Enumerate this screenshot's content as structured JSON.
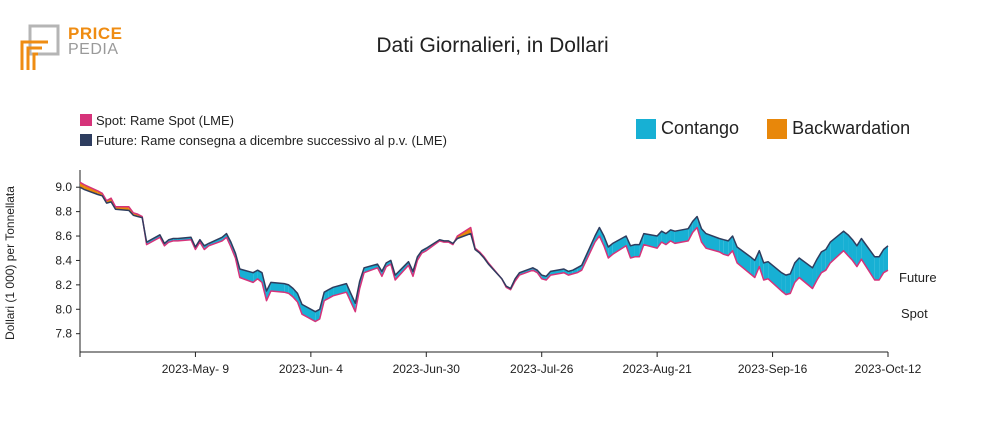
{
  "logo": {
    "top": "PRICE",
    "bottom": "PEDIA"
  },
  "colors": {
    "contango": "#17b0d4",
    "backwardation": "#e8870a",
    "spot": "#d6337a",
    "future": "#2e3d5f"
  },
  "chart_data": {
    "type": "area",
    "title": "Dati Giornalieri, in Dollari",
    "ylabel": "Dollari (1 000) per Tonnellata",
    "xlabel": "",
    "ylim": [
      7.65,
      9.1
    ],
    "yticks": [
      7.8,
      8.0,
      8.2,
      8.4,
      8.6,
      8.8,
      9.0
    ],
    "x_start": "2023-04-13",
    "x_end": "2023-10-12",
    "xticks": [
      {
        "date": "2023-05-09",
        "label": "2023-May- 9"
      },
      {
        "date": "2023-06-04",
        "label": "2023-Jun- 4"
      },
      {
        "date": "2023-06-30",
        "label": "2023-Jun-30"
      },
      {
        "date": "2023-07-26",
        "label": "2023-Jul-26"
      },
      {
        "date": "2023-08-21",
        "label": "2023-Aug-21"
      },
      {
        "date": "2023-09-16",
        "label": "2023-Sep-16"
      },
      {
        "date": "2023-10-12",
        "label": "2023-Oct-12"
      }
    ],
    "legend": [
      {
        "label": "Spot: Rame Spot (LME)"
      },
      {
        "label": "Future: Rame consegna a dicembre successivo al p.v. (LME)"
      }
    ],
    "fill_legend": [
      {
        "label": "Contango"
      },
      {
        "label": "Backwardation"
      }
    ],
    "end_labels": {
      "future": "Future",
      "spot": "Spot"
    },
    "series": [
      {
        "name": "Spot",
        "points": [
          [
            "2023-04-13",
            9.04
          ],
          [
            "2023-04-14",
            9.02
          ],
          [
            "2023-04-17",
            8.97
          ],
          [
            "2023-04-18",
            8.95
          ],
          [
            "2023-04-19",
            8.89
          ],
          [
            "2023-04-20",
            8.91
          ],
          [
            "2023-04-21",
            8.84
          ],
          [
            "2023-04-24",
            8.84
          ],
          [
            "2023-04-25",
            8.79
          ],
          [
            "2023-04-26",
            8.78
          ],
          [
            "2023-04-27",
            8.76
          ],
          [
            "2023-04-28",
            8.53
          ],
          [
            "2023-05-01",
            8.59
          ],
          [
            "2023-05-02",
            8.52
          ],
          [
            "2023-05-03",
            8.55
          ],
          [
            "2023-05-04",
            8.56
          ],
          [
            "2023-05-05",
            8.56
          ],
          [
            "2023-05-08",
            8.57
          ],
          [
            "2023-05-09",
            8.49
          ],
          [
            "2023-05-10",
            8.55
          ],
          [
            "2023-05-11",
            8.49
          ],
          [
            "2023-05-12",
            8.52
          ],
          [
            "2023-05-15",
            8.56
          ],
          [
            "2023-05-16",
            8.59
          ],
          [
            "2023-05-17",
            8.51
          ],
          [
            "2023-05-18",
            8.42
          ],
          [
            "2023-05-19",
            8.26
          ],
          [
            "2023-05-22",
            8.22
          ],
          [
            "2023-05-23",
            8.25
          ],
          [
            "2023-05-24",
            8.22
          ],
          [
            "2023-05-25",
            8.07
          ],
          [
            "2023-05-26",
            8.15
          ],
          [
            "2023-05-29",
            8.14
          ],
          [
            "2023-05-30",
            8.13
          ],
          [
            "2023-05-31",
            8.1
          ],
          [
            "2023-06-01",
            8.06
          ],
          [
            "2023-06-02",
            7.96
          ],
          [
            "2023-06-05",
            7.9
          ],
          [
            "2023-06-06",
            7.92
          ],
          [
            "2023-06-07",
            8.07
          ],
          [
            "2023-06-08",
            8.09
          ],
          [
            "2023-06-09",
            8.11
          ],
          [
            "2023-06-12",
            8.14
          ],
          [
            "2023-06-13",
            8.06
          ],
          [
            "2023-06-14",
            7.98
          ],
          [
            "2023-06-15",
            8.17
          ],
          [
            "2023-06-16",
            8.3
          ],
          [
            "2023-06-19",
            8.34
          ],
          [
            "2023-06-20",
            8.27
          ],
          [
            "2023-06-21",
            8.35
          ],
          [
            "2023-06-22",
            8.37
          ],
          [
            "2023-06-23",
            8.24
          ],
          [
            "2023-06-26",
            8.36
          ],
          [
            "2023-06-27",
            8.27
          ],
          [
            "2023-06-28",
            8.4
          ],
          [
            "2023-06-29",
            8.46
          ],
          [
            "2023-06-30",
            8.48
          ],
          [
            "2023-07-03",
            8.56
          ],
          [
            "2023-07-04",
            8.55
          ],
          [
            "2023-07-05",
            8.55
          ],
          [
            "2023-07-06",
            8.53
          ],
          [
            "2023-07-07",
            8.6
          ],
          [
            "2023-07-10",
            8.67
          ],
          [
            "2023-07-11",
            8.5
          ],
          [
            "2023-07-12",
            8.47
          ],
          [
            "2023-07-13",
            8.43
          ],
          [
            "2023-07-14",
            8.38
          ],
          [
            "2023-07-17",
            8.25
          ],
          [
            "2023-07-18",
            8.18
          ],
          [
            "2023-07-19",
            8.16
          ],
          [
            "2023-07-20",
            8.23
          ],
          [
            "2023-07-21",
            8.28
          ],
          [
            "2023-07-24",
            8.32
          ],
          [
            "2023-07-25",
            8.3
          ],
          [
            "2023-07-26",
            8.25
          ],
          [
            "2023-07-27",
            8.24
          ],
          [
            "2023-07-28",
            8.28
          ],
          [
            "2023-07-31",
            8.3
          ],
          [
            "2023-08-01",
            8.28
          ],
          [
            "2023-08-02",
            8.29
          ],
          [
            "2023-08-03",
            8.3
          ],
          [
            "2023-08-04",
            8.32
          ],
          [
            "2023-08-07",
            8.55
          ],
          [
            "2023-08-08",
            8.6
          ],
          [
            "2023-08-09",
            8.52
          ],
          [
            "2023-08-10",
            8.42
          ],
          [
            "2023-08-11",
            8.45
          ],
          [
            "2023-08-14",
            8.52
          ],
          [
            "2023-08-15",
            8.42
          ],
          [
            "2023-08-16",
            8.43
          ],
          [
            "2023-08-17",
            8.43
          ],
          [
            "2023-08-18",
            8.53
          ],
          [
            "2023-08-21",
            8.5
          ],
          [
            "2023-08-22",
            8.55
          ],
          [
            "2023-08-23",
            8.53
          ],
          [
            "2023-08-24",
            8.56
          ],
          [
            "2023-08-25",
            8.54
          ],
          [
            "2023-08-28",
            8.56
          ],
          [
            "2023-08-29",
            8.63
          ],
          [
            "2023-08-30",
            8.67
          ],
          [
            "2023-08-31",
            8.55
          ],
          [
            "2023-09-01",
            8.5
          ],
          [
            "2023-09-04",
            8.47
          ],
          [
            "2023-09-05",
            8.45
          ],
          [
            "2023-09-06",
            8.44
          ],
          [
            "2023-09-07",
            8.48
          ],
          [
            "2023-09-08",
            8.38
          ],
          [
            "2023-09-11",
            8.29
          ],
          [
            "2023-09-12",
            8.26
          ],
          [
            "2023-09-13",
            8.35
          ],
          [
            "2023-09-14",
            8.24
          ],
          [
            "2023-09-15",
            8.25
          ],
          [
            "2023-09-18",
            8.15
          ],
          [
            "2023-09-19",
            8.12
          ],
          [
            "2023-09-20",
            8.13
          ],
          [
            "2023-09-21",
            8.22
          ],
          [
            "2023-09-22",
            8.26
          ],
          [
            "2023-09-25",
            8.17
          ],
          [
            "2023-09-26",
            8.24
          ],
          [
            "2023-09-27",
            8.3
          ],
          [
            "2023-09-28",
            8.32
          ],
          [
            "2023-09-29",
            8.38
          ],
          [
            "2023-10-02",
            8.48
          ],
          [
            "2023-10-03",
            8.44
          ],
          [
            "2023-10-04",
            8.4
          ],
          [
            "2023-10-05",
            8.35
          ],
          [
            "2023-10-06",
            8.41
          ],
          [
            "2023-10-09",
            8.24
          ],
          [
            "2023-10-10",
            8.24
          ],
          [
            "2023-10-11",
            8.3
          ],
          [
            "2023-10-12",
            8.32
          ]
        ]
      },
      {
        "name": "Future",
        "points": [
          [
            "2023-04-13",
            9.0
          ],
          [
            "2023-04-14",
            8.98
          ],
          [
            "2023-04-17",
            8.94
          ],
          [
            "2023-04-18",
            8.93
          ],
          [
            "2023-04-19",
            8.87
          ],
          [
            "2023-04-20",
            8.88
          ],
          [
            "2023-04-21",
            8.82
          ],
          [
            "2023-04-24",
            8.81
          ],
          [
            "2023-04-25",
            8.77
          ],
          [
            "2023-04-26",
            8.76
          ],
          [
            "2023-04-27",
            8.75
          ],
          [
            "2023-04-28",
            8.55
          ],
          [
            "2023-05-01",
            8.61
          ],
          [
            "2023-05-02",
            8.54
          ],
          [
            "2023-05-03",
            8.57
          ],
          [
            "2023-05-04",
            8.58
          ],
          [
            "2023-05-05",
            8.58
          ],
          [
            "2023-05-08",
            8.59
          ],
          [
            "2023-05-09",
            8.51
          ],
          [
            "2023-05-10",
            8.57
          ],
          [
            "2023-05-11",
            8.52
          ],
          [
            "2023-05-12",
            8.54
          ],
          [
            "2023-05-15",
            8.59
          ],
          [
            "2023-05-16",
            8.62
          ],
          [
            "2023-05-17",
            8.55
          ],
          [
            "2023-05-18",
            8.46
          ],
          [
            "2023-05-19",
            8.33
          ],
          [
            "2023-05-22",
            8.3
          ],
          [
            "2023-05-23",
            8.32
          ],
          [
            "2023-05-24",
            8.3
          ],
          [
            "2023-05-25",
            8.15
          ],
          [
            "2023-05-26",
            8.22
          ],
          [
            "2023-05-29",
            8.21
          ],
          [
            "2023-05-30",
            8.2
          ],
          [
            "2023-05-31",
            8.17
          ],
          [
            "2023-06-01",
            8.13
          ],
          [
            "2023-06-02",
            8.04
          ],
          [
            "2023-06-05",
            7.98
          ],
          [
            "2023-06-06",
            8.0
          ],
          [
            "2023-06-07",
            8.14
          ],
          [
            "2023-06-08",
            8.16
          ],
          [
            "2023-06-09",
            8.18
          ],
          [
            "2023-06-12",
            8.21
          ],
          [
            "2023-06-13",
            8.13
          ],
          [
            "2023-06-14",
            8.05
          ],
          [
            "2023-06-15",
            8.23
          ],
          [
            "2023-06-16",
            8.34
          ],
          [
            "2023-06-19",
            8.37
          ],
          [
            "2023-06-20",
            8.31
          ],
          [
            "2023-06-21",
            8.38
          ],
          [
            "2023-06-22",
            8.4
          ],
          [
            "2023-06-23",
            8.28
          ],
          [
            "2023-06-26",
            8.39
          ],
          [
            "2023-06-27",
            8.31
          ],
          [
            "2023-06-28",
            8.43
          ],
          [
            "2023-06-29",
            8.48
          ],
          [
            "2023-06-30",
            8.5
          ],
          [
            "2023-07-03",
            8.57
          ],
          [
            "2023-07-04",
            8.56
          ],
          [
            "2023-07-05",
            8.56
          ],
          [
            "2023-07-06",
            8.54
          ],
          [
            "2023-07-07",
            8.58
          ],
          [
            "2023-07-10",
            8.62
          ],
          [
            "2023-07-11",
            8.49
          ],
          [
            "2023-07-12",
            8.46
          ],
          [
            "2023-07-13",
            8.42
          ],
          [
            "2023-07-14",
            8.37
          ],
          [
            "2023-07-17",
            8.25
          ],
          [
            "2023-07-18",
            8.19
          ],
          [
            "2023-07-19",
            8.17
          ],
          [
            "2023-07-20",
            8.25
          ],
          [
            "2023-07-21",
            8.3
          ],
          [
            "2023-07-24",
            8.34
          ],
          [
            "2023-07-25",
            8.32
          ],
          [
            "2023-07-26",
            8.28
          ],
          [
            "2023-07-27",
            8.27
          ],
          [
            "2023-07-28",
            8.31
          ],
          [
            "2023-07-31",
            8.33
          ],
          [
            "2023-08-01",
            8.31
          ],
          [
            "2023-08-02",
            8.32
          ],
          [
            "2023-08-03",
            8.34
          ],
          [
            "2023-08-04",
            8.36
          ],
          [
            "2023-08-07",
            8.6
          ],
          [
            "2023-08-08",
            8.67
          ],
          [
            "2023-08-09",
            8.6
          ],
          [
            "2023-08-10",
            8.51
          ],
          [
            "2023-08-11",
            8.54
          ],
          [
            "2023-08-14",
            8.6
          ],
          [
            "2023-08-15",
            8.52
          ],
          [
            "2023-08-16",
            8.53
          ],
          [
            "2023-08-17",
            8.53
          ],
          [
            "2023-08-18",
            8.62
          ],
          [
            "2023-08-21",
            8.6
          ],
          [
            "2023-08-22",
            8.64
          ],
          [
            "2023-08-23",
            8.62
          ],
          [
            "2023-08-24",
            8.65
          ],
          [
            "2023-08-25",
            8.64
          ],
          [
            "2023-08-28",
            8.66
          ],
          [
            "2023-08-29",
            8.72
          ],
          [
            "2023-08-30",
            8.76
          ],
          [
            "2023-08-31",
            8.66
          ],
          [
            "2023-09-01",
            8.62
          ],
          [
            "2023-09-04",
            8.58
          ],
          [
            "2023-09-05",
            8.57
          ],
          [
            "2023-09-06",
            8.56
          ],
          [
            "2023-09-07",
            8.6
          ],
          [
            "2023-09-08",
            8.51
          ],
          [
            "2023-09-11",
            8.43
          ],
          [
            "2023-09-12",
            8.4
          ],
          [
            "2023-09-13",
            8.48
          ],
          [
            "2023-09-14",
            8.38
          ],
          [
            "2023-09-15",
            8.39
          ],
          [
            "2023-09-18",
            8.3
          ],
          [
            "2023-09-19",
            8.28
          ],
          [
            "2023-09-20",
            8.29
          ],
          [
            "2023-09-21",
            8.38
          ],
          [
            "2023-09-22",
            8.42
          ],
          [
            "2023-09-25",
            8.34
          ],
          [
            "2023-09-26",
            8.41
          ],
          [
            "2023-09-27",
            8.47
          ],
          [
            "2023-09-28",
            8.49
          ],
          [
            "2023-09-29",
            8.55
          ],
          [
            "2023-10-02",
            8.64
          ],
          [
            "2023-10-03",
            8.61
          ],
          [
            "2023-10-04",
            8.57
          ],
          [
            "2023-10-05",
            8.52
          ],
          [
            "2023-10-06",
            8.58
          ],
          [
            "2023-10-09",
            8.43
          ],
          [
            "2023-10-10",
            8.43
          ],
          [
            "2023-10-11",
            8.49
          ],
          [
            "2023-10-12",
            8.52
          ]
        ]
      }
    ]
  }
}
